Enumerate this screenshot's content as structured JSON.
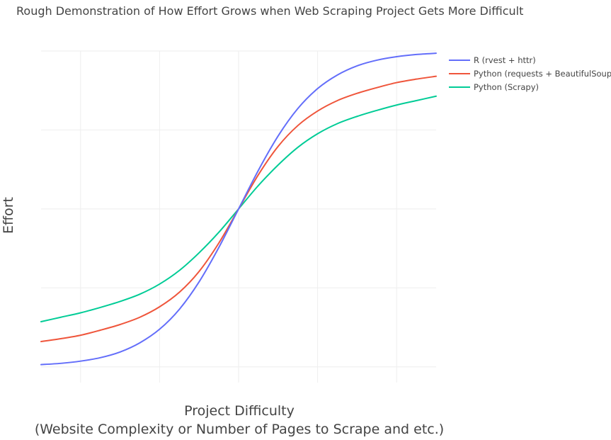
{
  "chart_data": {
    "type": "line",
    "title": "Rough Demonstration of How Effort Grows when Web Scraping Project Gets More Difficult",
    "xlabel_line1": "Project Difficulty",
    "xlabel_line2": "(Website Complexity or Number of Pages to Scrape and etc.)",
    "ylabel": "Effort",
    "xlim": [
      -5,
      5
    ],
    "ylim": [
      -0.05,
      1.0
    ],
    "x_gridlines": [
      -4,
      -2,
      0,
      2,
      4
    ],
    "y_gridlines": [
      0,
      0.25,
      0.5,
      0.75,
      1.0
    ],
    "legend_position": "top-right",
    "series": [
      {
        "name": "R (rvest + httr)",
        "color": "#636efa",
        "x": [
          -5,
          -4.5,
          -4,
          -3.5,
          -3,
          -2.5,
          -2,
          -1.5,
          -1,
          -0.5,
          0,
          0.5,
          1,
          1.5,
          2,
          2.5,
          3,
          3.5,
          4,
          4.5,
          5
        ],
        "y": [
          0.007,
          0.011,
          0.018,
          0.029,
          0.047,
          0.076,
          0.119,
          0.182,
          0.269,
          0.378,
          0.5,
          0.622,
          0.731,
          0.818,
          0.881,
          0.924,
          0.953,
          0.971,
          0.982,
          0.989,
          0.993
        ]
      },
      {
        "name": "Python (requests + BeautifulSoup)",
        "color": "#ef553b",
        "x": [
          -5,
          -4.5,
          -4,
          -3.5,
          -3,
          -2.5,
          -2,
          -1.5,
          -1,
          -0.5,
          0,
          0.5,
          1,
          1.5,
          2,
          2.5,
          3,
          3.5,
          4,
          4.5,
          5
        ],
        "y": [
          0.08,
          0.089,
          0.1,
          0.116,
          0.134,
          0.157,
          0.19,
          0.236,
          0.302,
          0.392,
          0.5,
          0.608,
          0.698,
          0.764,
          0.81,
          0.843,
          0.866,
          0.884,
          0.9,
          0.911,
          0.92
        ]
      },
      {
        "name": "Python (Scrapy)",
        "color": "#00cc96",
        "x": [
          -5,
          -4.5,
          -4,
          -3.5,
          -3,
          -2.5,
          -2,
          -1.5,
          -1,
          -0.5,
          0,
          0.5,
          1,
          1.5,
          2,
          2.5,
          3,
          3.5,
          4,
          4.5,
          5
        ],
        "y": [
          0.143,
          0.157,
          0.171,
          0.188,
          0.207,
          0.23,
          0.262,
          0.305,
          0.361,
          0.426,
          0.5,
          0.574,
          0.639,
          0.695,
          0.738,
          0.77,
          0.793,
          0.812,
          0.829,
          0.843,
          0.857
        ]
      }
    ]
  }
}
